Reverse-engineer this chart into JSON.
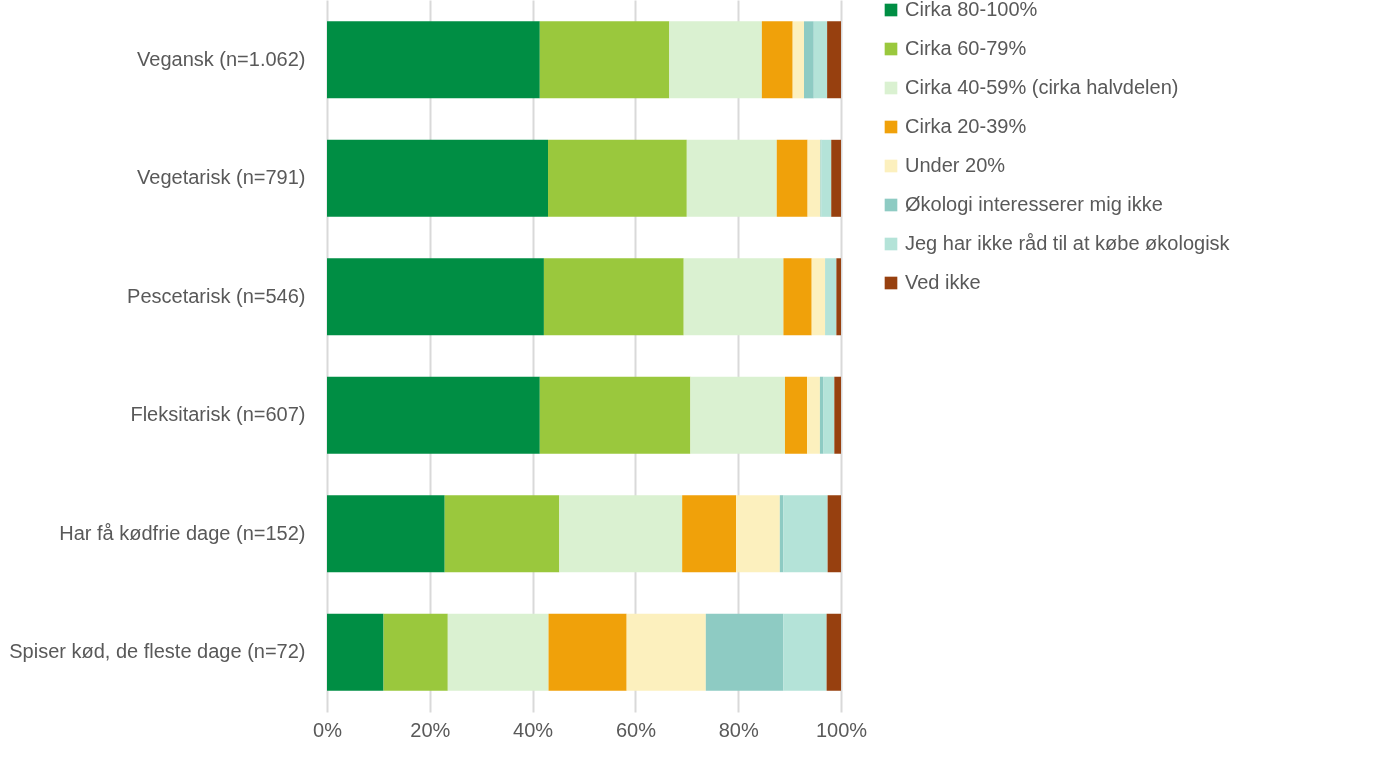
{
  "chart_data": {
    "type": "bar",
    "orientation": "horizontal",
    "stacked": true,
    "categories": [
      "Vegansk (n=1.062)",
      "Vegetarisk (n=791)",
      "Pescetarisk (n=546)",
      "Fleksitarisk (n=607)",
      "Har få kødfrie dage (n=152)",
      "Spiser kød, de fleste dage (n=72)"
    ],
    "series": [
      {
        "name": "Cirka 80-100%",
        "color": "#008e44",
        "values": [
          41.4,
          43.0,
          42.2,
          41.4,
          22.9,
          11.0
        ]
      },
      {
        "name": "Cirka 60-79%",
        "color": "#9ac83d",
        "values": [
          25.2,
          27.0,
          27.2,
          29.3,
          22.3,
          12.5
        ]
      },
      {
        "name": "Cirka 40-59% (cirka halvdelen)",
        "color": "#daf1d1",
        "values": [
          18.0,
          17.5,
          19.4,
          18.4,
          23.9,
          19.6
        ]
      },
      {
        "name": "Cirka 20-39%",
        "color": "#f0a10a",
        "values": [
          6.0,
          6.0,
          5.5,
          4.3,
          10.5,
          15.2
        ]
      },
      {
        "name": "Under 20%",
        "color": "#fcf0be",
        "values": [
          2.2,
          2.5,
          2.6,
          2.5,
          8.5,
          15.4
        ]
      },
      {
        "name": "Økologi interesserer mig ikke",
        "color": "#8ecbc3",
        "values": [
          1.9,
          0.2,
          0,
          0.7,
          0.7,
          15.1
        ]
      },
      {
        "name": "Jeg har ikke råd til at købe økologisk",
        "color": "#b4e3d8",
        "values": [
          2.6,
          1.9,
          2.2,
          2.1,
          8.6,
          8.4
        ]
      },
      {
        "name": "Ved ikke",
        "color": "#97400f",
        "values": [
          2.7,
          1.9,
          0.9,
          1.3,
          2.6,
          2.8
        ]
      }
    ],
    "xlim": [
      0,
      100
    ],
    "xticks": [
      {
        "value": 0,
        "label": "0%"
      },
      {
        "value": 20,
        "label": "20%"
      },
      {
        "value": 40,
        "label": "40%"
      },
      {
        "value": 60,
        "label": "60%"
      },
      {
        "value": 80,
        "label": "80%"
      },
      {
        "value": 100,
        "label": "100%"
      }
    ],
    "grid": "x",
    "legend": "right"
  }
}
